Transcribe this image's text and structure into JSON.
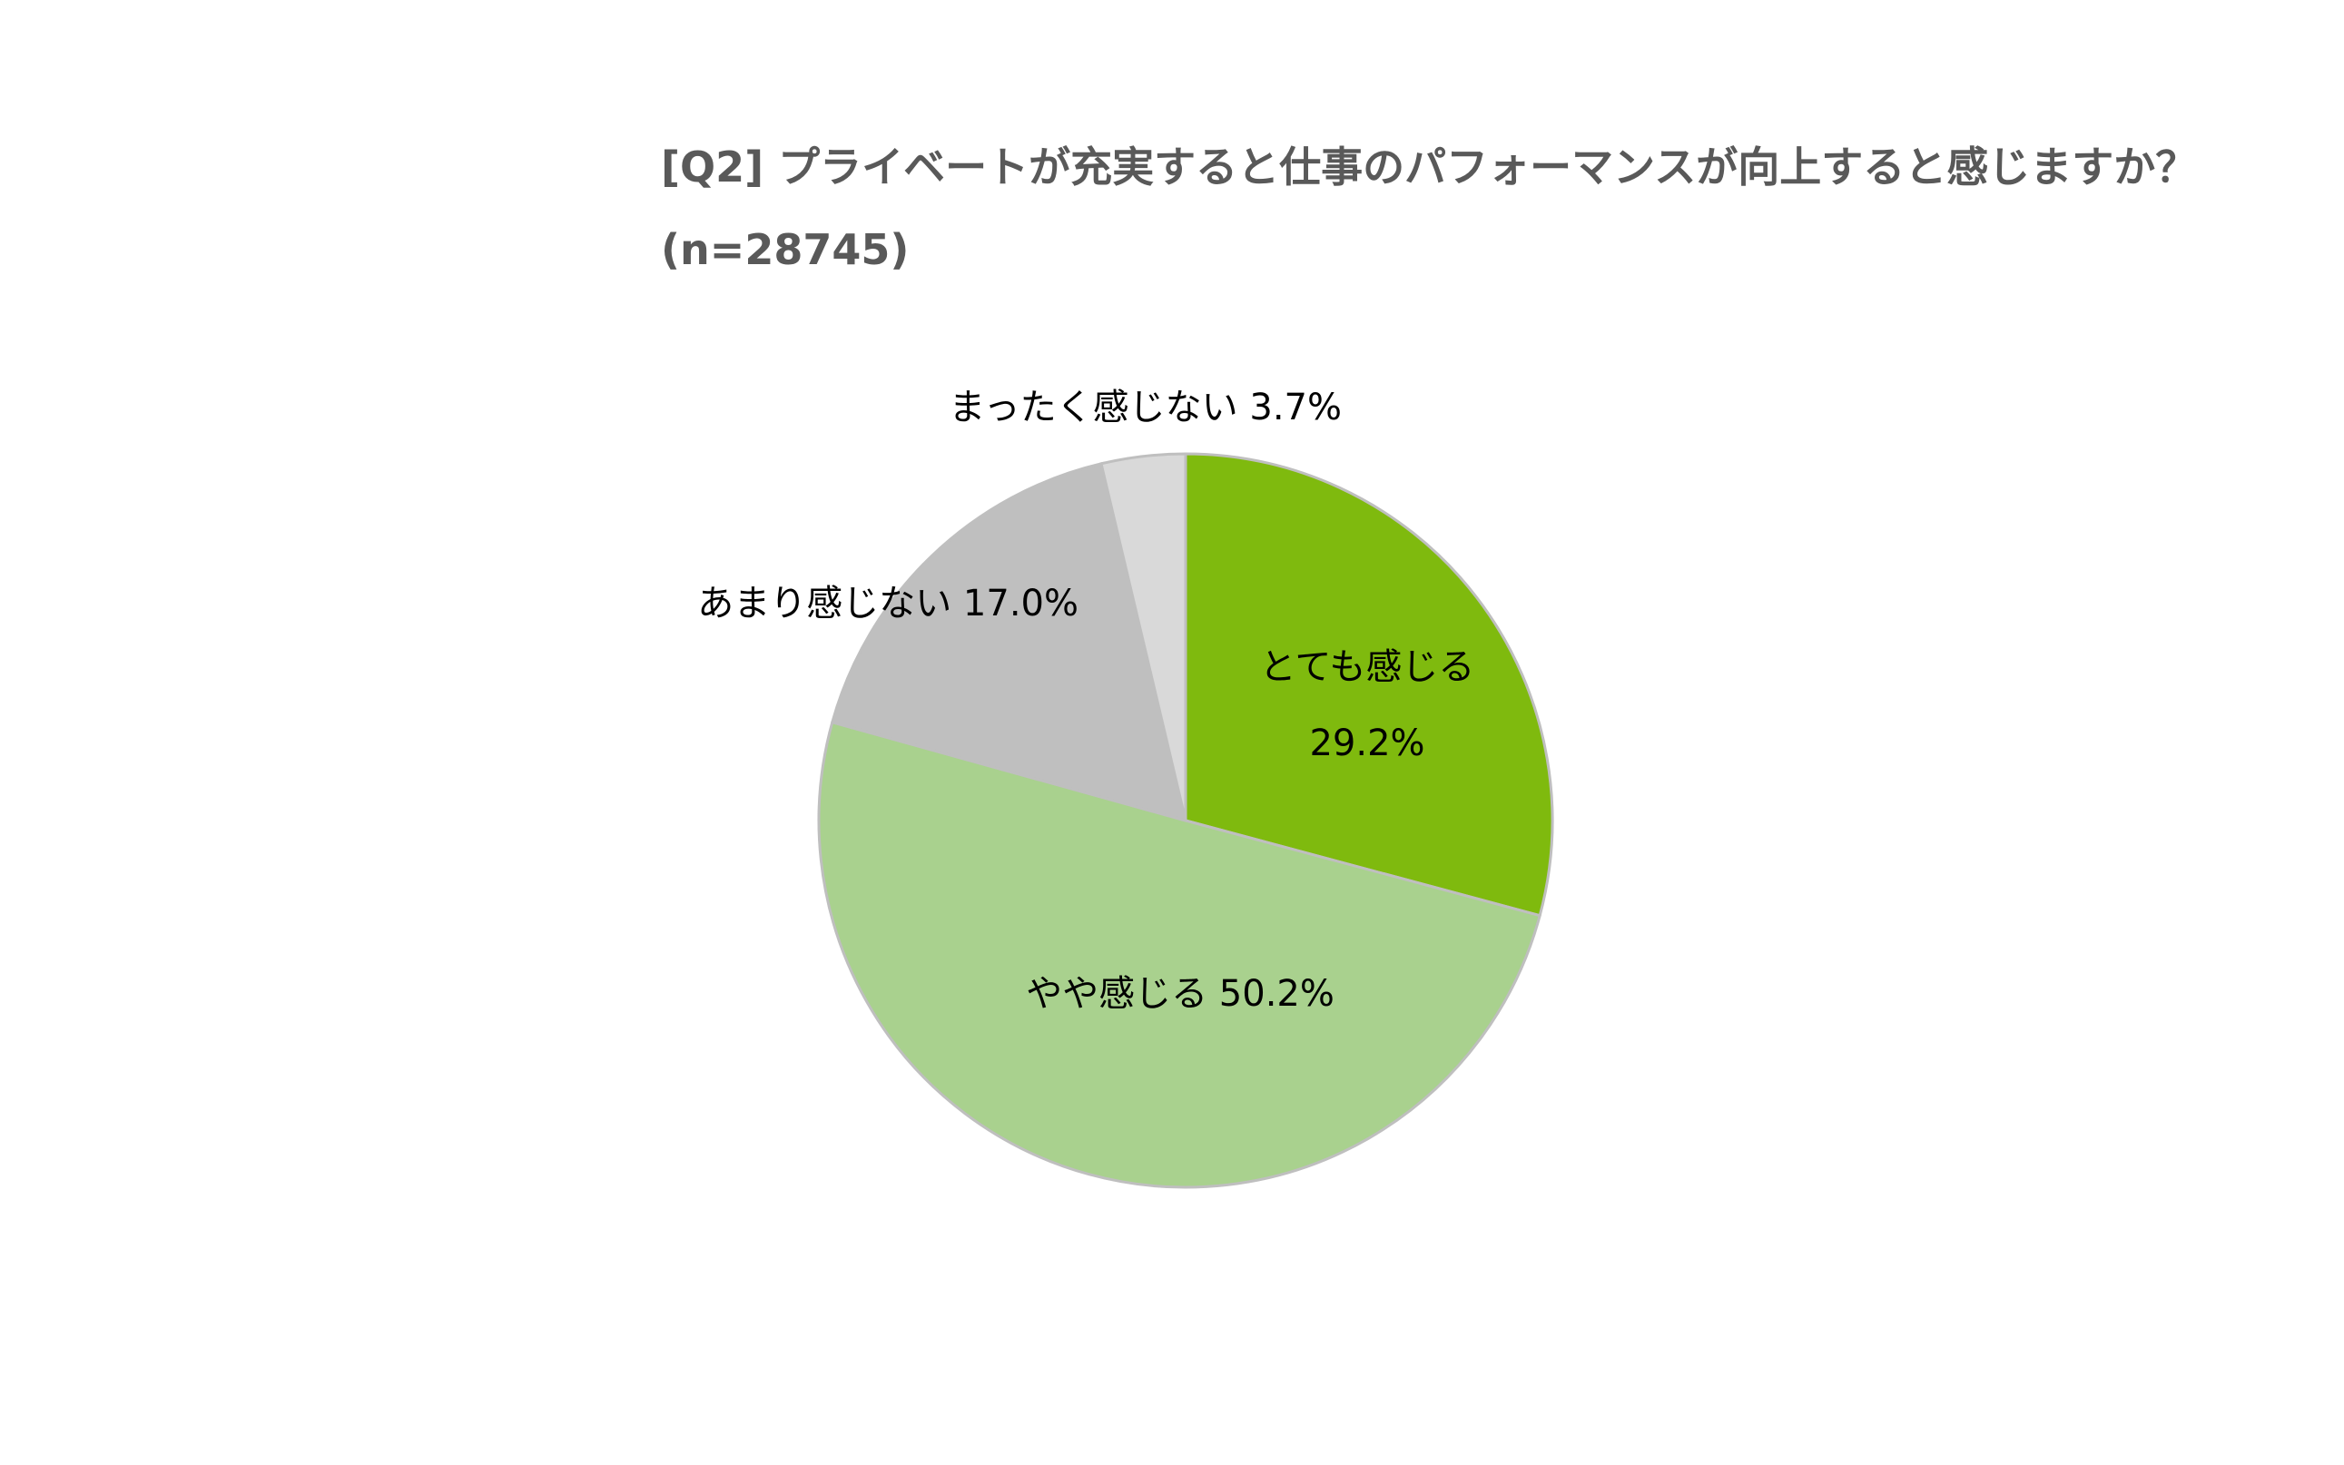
{
  "chart_data": {
    "type": "pie",
    "title_lines": [
      "[Q2] プライベートが充実すると仕事のパフォーマンスが向上すると感じますか？",
      "(n=28745)"
    ],
    "slices": [
      {
        "label": "とても感じる",
        "value": 29.2,
        "value_label": "29.2%",
        "color": "#7fba0e"
      },
      {
        "label": "やや感じる",
        "value": 50.2,
        "value_label": "50.2%",
        "color": "#a9d18e"
      },
      {
        "label": "あまり感じない",
        "value": 17.0,
        "value_label": "17.0%",
        "color": "#bfbfbf"
      },
      {
        "label": "まったく感じない",
        "value": 3.7,
        "value_label": "3.7%",
        "color": "#d9d9d9"
      }
    ],
    "start": "12 o'clock",
    "direction": "clockwise",
    "slice_border_color": "#bfbfbf"
  }
}
